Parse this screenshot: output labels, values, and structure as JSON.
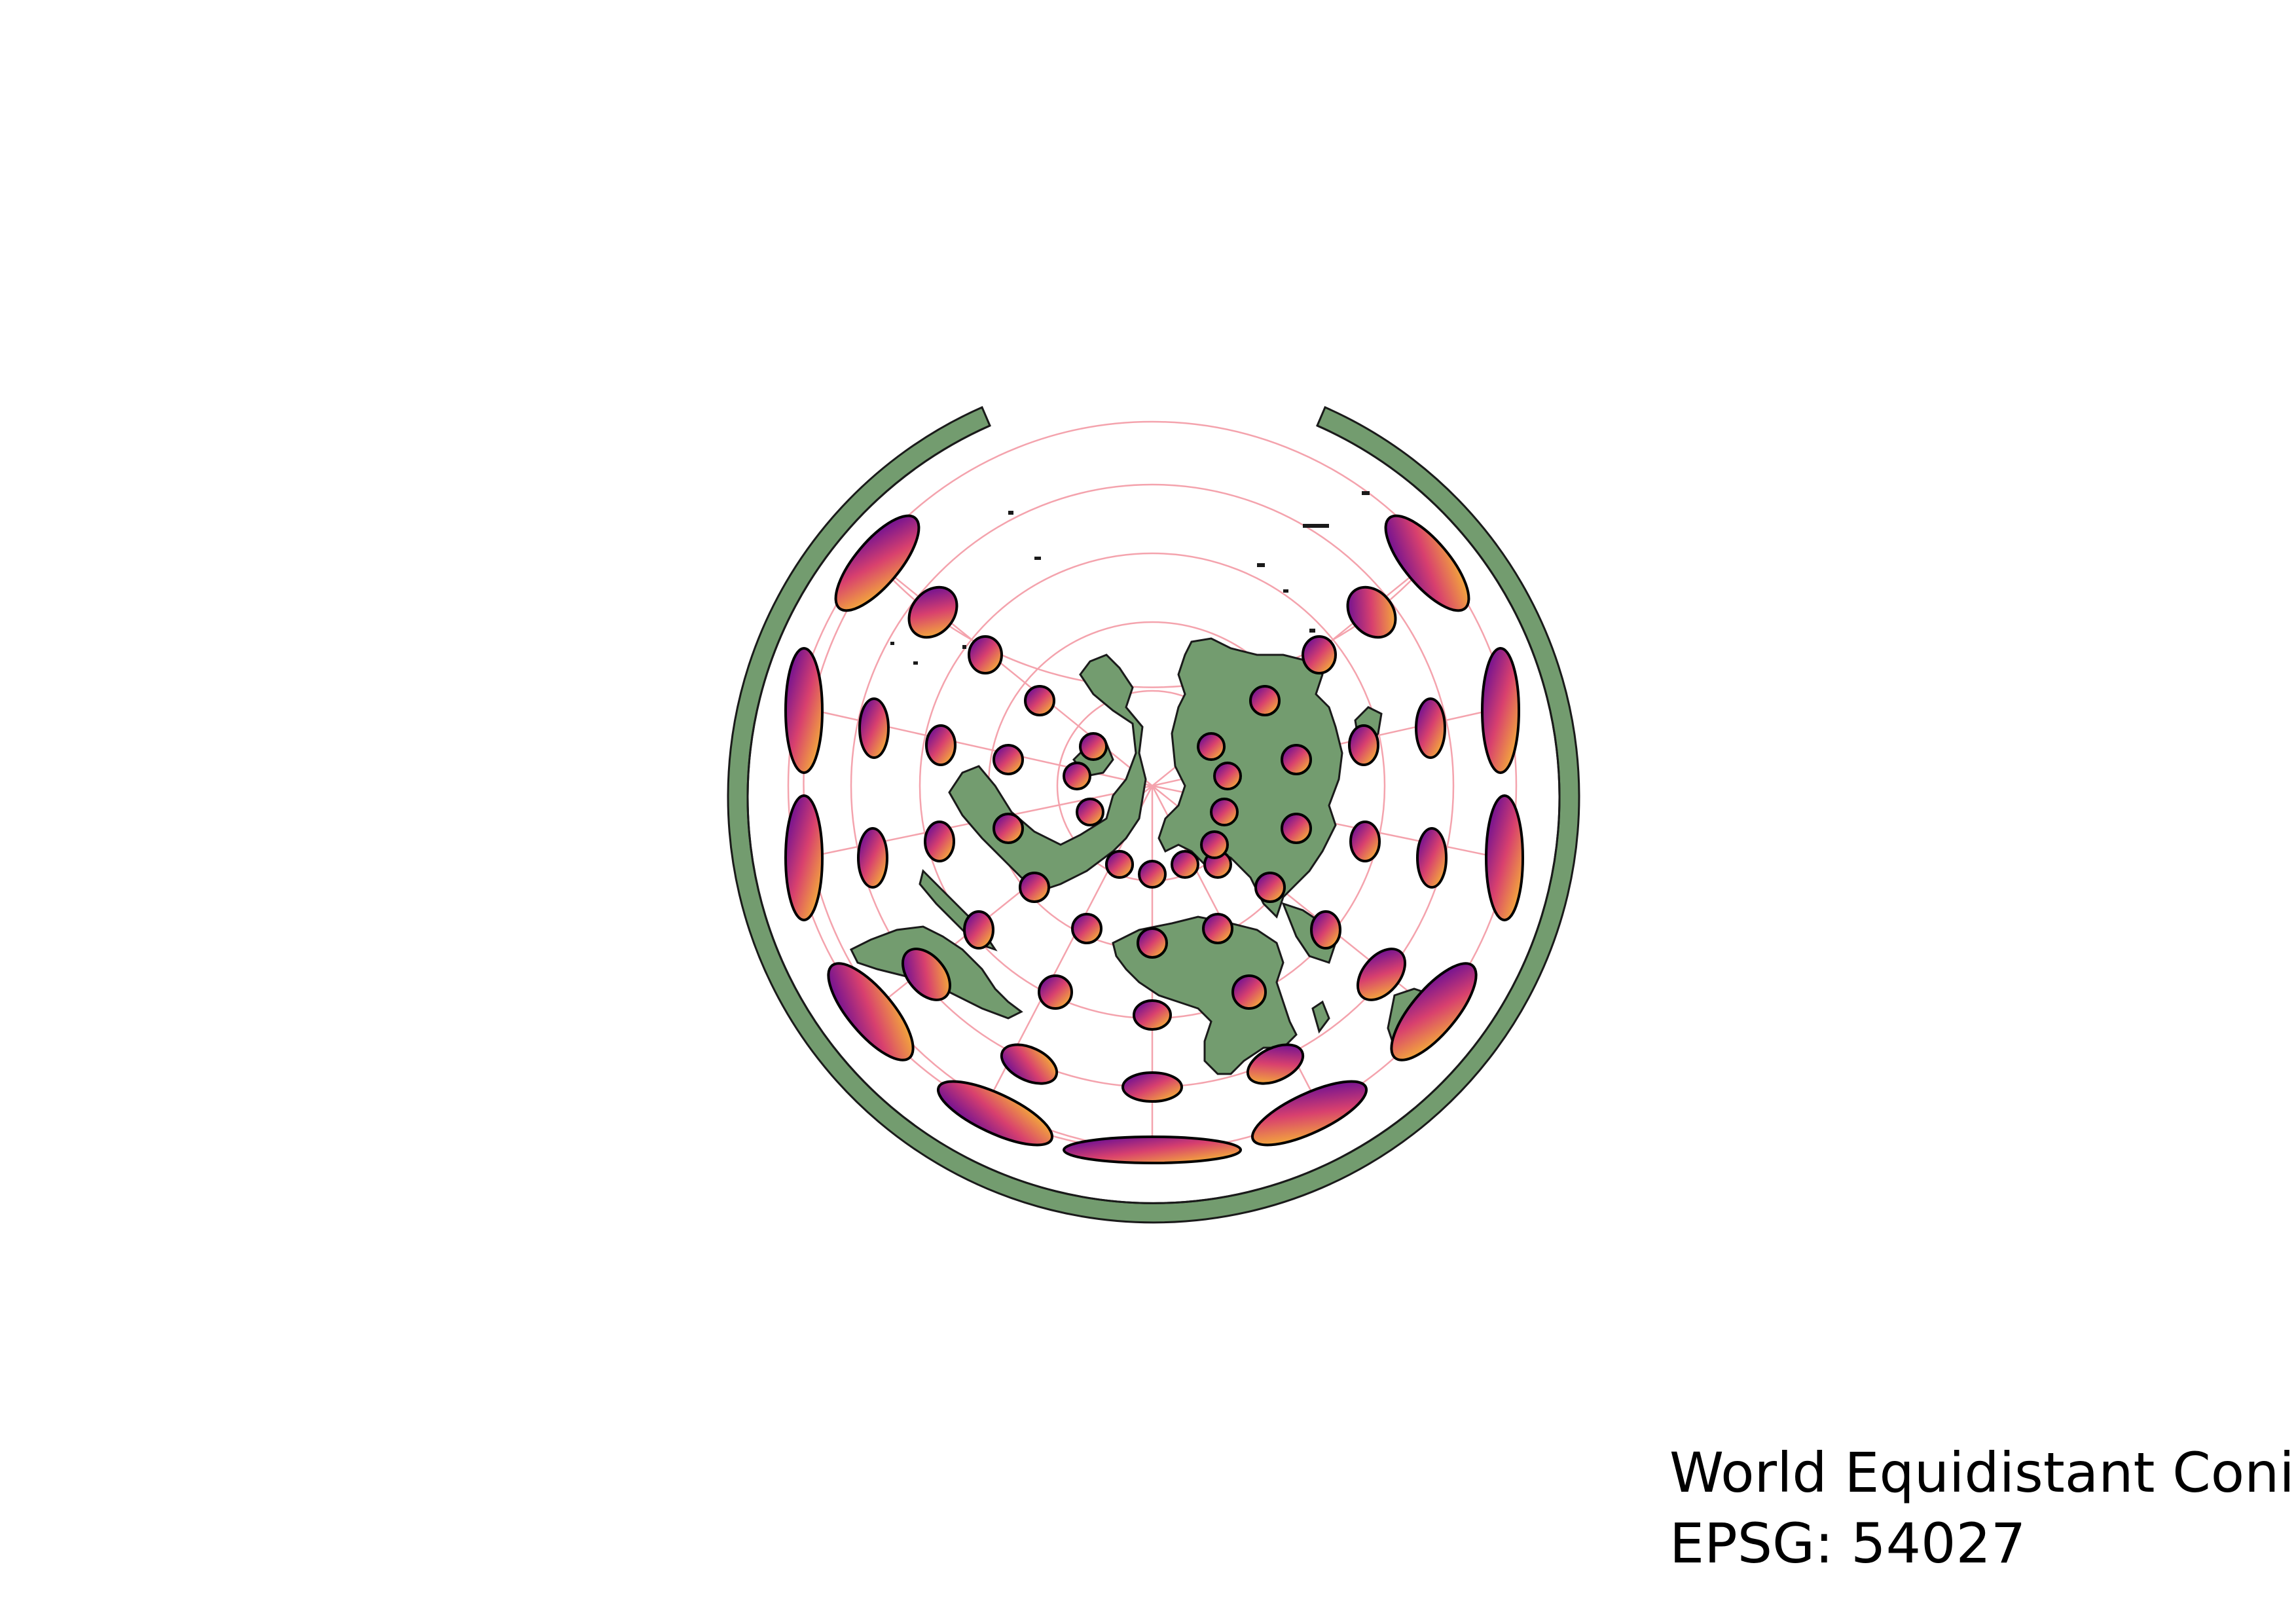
{
  "map": {
    "projection_name": "World Equidistant Conic",
    "epsg_label": "EPSG: 54027",
    "indicatrix": "Tissot indicatrices",
    "land_color": "#739c6f",
    "outline_color": "#1a1a1a",
    "graticule_color": "#f4a3ad",
    "ellipse_gradient": [
      "#5a00a8",
      "#d23f78",
      "#fbc227"
    ]
  }
}
